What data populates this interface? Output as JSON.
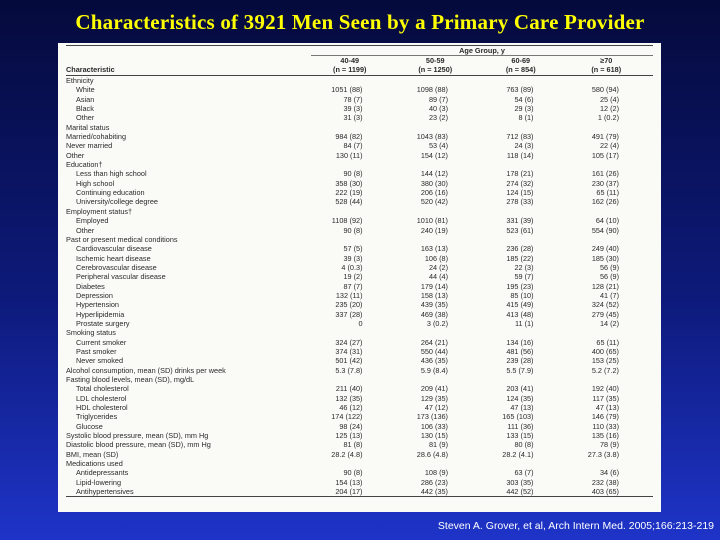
{
  "slide_title": "Characteristics of 3921 Men Seen by a Primary Care Provider",
  "table": {
    "group_header": "Age Group, y",
    "char_header": "Characteristic",
    "columns": [
      {
        "label": "40-49",
        "n": "(n = 1199)"
      },
      {
        "label": "50-59",
        "n": "(n = 1250)"
      },
      {
        "label": "60-69",
        "n": "(n = 854)"
      },
      {
        "label": "≥70",
        "n": "(n = 618)"
      }
    ],
    "rows": [
      {
        "label": "Ethnicity",
        "indent": false,
        "section": true,
        "values": [
          "",
          "",
          "",
          ""
        ]
      },
      {
        "label": "White",
        "indent": true,
        "values": [
          "1051 (88)",
          "1098 (88)",
          "763 (89)",
          "580 (94)"
        ]
      },
      {
        "label": "Asian",
        "indent": true,
        "values": [
          "78 (7)",
          "89 (7)",
          "54 (6)",
          "25 (4)"
        ]
      },
      {
        "label": "Black",
        "indent": true,
        "values": [
          "39 (3)",
          "40 (3)",
          "29 (3)",
          "12 (2)"
        ]
      },
      {
        "label": "Other",
        "indent": true,
        "values": [
          "31 (3)",
          "23 (2)",
          "8 (1)",
          "1 (0.2)"
        ]
      },
      {
        "label": "Marital status",
        "indent": false,
        "section": true,
        "values": [
          "",
          "",
          "",
          ""
        ]
      },
      {
        "label": "Married/cohabiting",
        "indent": false,
        "values": [
          "984 (82)",
          "1043 (83)",
          "712 (83)",
          "491 (79)"
        ]
      },
      {
        "label": "Never married",
        "indent": false,
        "values": [
          "84 (7)",
          "53 (4)",
          "24 (3)",
          "22 (4)"
        ]
      },
      {
        "label": "Other",
        "indent": false,
        "values": [
          "130 (11)",
          "154 (12)",
          "118 (14)",
          "105 (17)"
        ]
      },
      {
        "label": "Education†",
        "indent": false,
        "section": true,
        "values": [
          "",
          "",
          "",
          ""
        ]
      },
      {
        "label": "Less than high school",
        "indent": true,
        "values": [
          "90 (8)",
          "144 (12)",
          "178 (21)",
          "161 (26)"
        ]
      },
      {
        "label": "High school",
        "indent": true,
        "values": [
          "358 (30)",
          "380 (30)",
          "274 (32)",
          "230 (37)"
        ]
      },
      {
        "label": "Continuing education",
        "indent": true,
        "values": [
          "222 (19)",
          "206 (16)",
          "124 (15)",
          "65 (11)"
        ]
      },
      {
        "label": "University/college degree",
        "indent": true,
        "values": [
          "528 (44)",
          "520 (42)",
          "278 (33)",
          "162 (26)"
        ]
      },
      {
        "label": "Employment status†",
        "indent": false,
        "section": true,
        "values": [
          "",
          "",
          "",
          ""
        ]
      },
      {
        "label": "Employed",
        "indent": true,
        "values": [
          "1108 (92)",
          "1010 (81)",
          "331 (39)",
          "64 (10)"
        ]
      },
      {
        "label": "Other",
        "indent": true,
        "values": [
          "90 (8)",
          "240 (19)",
          "523 (61)",
          "554 (90)"
        ]
      },
      {
        "label": "Past or present medical conditions",
        "indent": false,
        "section": true,
        "values": [
          "",
          "",
          "",
          ""
        ]
      },
      {
        "label": "Cardiovascular disease",
        "indent": true,
        "values": [
          "57 (5)",
          "163 (13)",
          "236 (28)",
          "249 (40)"
        ]
      },
      {
        "label": "Ischemic heart disease",
        "indent": true,
        "values": [
          "39 (3)",
          "106 (8)",
          "185 (22)",
          "185 (30)"
        ]
      },
      {
        "label": "Cerebrovascular disease",
        "indent": true,
        "values": [
          "4 (0.3)",
          "24 (2)",
          "22 (3)",
          "56 (9)"
        ]
      },
      {
        "label": "Peripheral vascular disease",
        "indent": true,
        "values": [
          "19 (2)",
          "44 (4)",
          "59 (7)",
          "56 (9)"
        ]
      },
      {
        "label": "Diabetes",
        "indent": true,
        "values": [
          "87 (7)",
          "179 (14)",
          "195 (23)",
          "128 (21)"
        ]
      },
      {
        "label": "Depression",
        "indent": true,
        "values": [
          "132 (11)",
          "158 (13)",
          "85 (10)",
          "41 (7)"
        ]
      },
      {
        "label": "Hypertension",
        "indent": true,
        "values": [
          "235 (20)",
          "439 (35)",
          "415 (49)",
          "324 (52)"
        ]
      },
      {
        "label": "Hyperlipidemia",
        "indent": true,
        "values": [
          "337 (28)",
          "469 (38)",
          "413 (48)",
          "279 (45)"
        ]
      },
      {
        "label": "Prostate surgery",
        "indent": true,
        "values": [
          "0",
          "3 (0.2)",
          "11 (1)",
          "14 (2)"
        ]
      },
      {
        "label": "Smoking status",
        "indent": false,
        "section": true,
        "values": [
          "",
          "",
          "",
          ""
        ]
      },
      {
        "label": "Current smoker",
        "indent": true,
        "values": [
          "324 (27)",
          "264 (21)",
          "134 (16)",
          "65 (11)"
        ]
      },
      {
        "label": "Past smoker",
        "indent": true,
        "values": [
          "374 (31)",
          "550 (44)",
          "481 (56)",
          "400 (65)"
        ]
      },
      {
        "label": "Never smoked",
        "indent": true,
        "values": [
          "501 (42)",
          "436 (35)",
          "239 (28)",
          "153 (25)"
        ]
      },
      {
        "label": "Alcohol consumption, mean (SD) drinks per week",
        "indent": false,
        "values": [
          "5.3 (7.8)",
          "5.9 (8.4)",
          "5.5 (7.9)",
          "5.2 (7.2)"
        ]
      },
      {
        "label": "Fasting blood levels, mean (SD), mg/dL",
        "indent": false,
        "section": true,
        "values": [
          "",
          "",
          "",
          ""
        ]
      },
      {
        "label": "Total cholesterol",
        "indent": true,
        "values": [
          "211 (40)",
          "209 (41)",
          "203 (41)",
          "192 (40)"
        ]
      },
      {
        "label": "LDL cholesterol",
        "indent": true,
        "values": [
          "132 (35)",
          "129 (35)",
          "124 (35)",
          "117 (35)"
        ]
      },
      {
        "label": "HDL cholesterol",
        "indent": true,
        "values": [
          "46 (12)",
          "47 (12)",
          "47 (13)",
          "47 (13)"
        ]
      },
      {
        "label": "Triglycerides",
        "indent": true,
        "values": [
          "174 (122)",
          "173 (136)",
          "165 (103)",
          "146 (79)"
        ]
      },
      {
        "label": "Glucose",
        "indent": true,
        "values": [
          "98 (24)",
          "106 (33)",
          "111 (36)",
          "110 (33)"
        ]
      },
      {
        "label": "Systolic blood pressure, mean (SD), mm Hg",
        "indent": false,
        "values": [
          "125 (13)",
          "130 (15)",
          "133 (15)",
          "135 (16)"
        ]
      },
      {
        "label": "Diastolic blood pressure, mean (SD), mm Hg",
        "indent": false,
        "values": [
          "81 (8)",
          "81 (9)",
          "80 (8)",
          "78 (9)"
        ]
      },
      {
        "label": "BMI, mean (SD)",
        "indent": false,
        "values": [
          "28.2 (4.8)",
          "28.6 (4.8)",
          "28.2 (4.1)",
          "27.3 (3.8)"
        ]
      },
      {
        "label": "Medications used",
        "indent": false,
        "section": true,
        "values": [
          "",
          "",
          "",
          ""
        ]
      },
      {
        "label": "Antidepressants",
        "indent": true,
        "values": [
          "90 (8)",
          "108 (9)",
          "63 (7)",
          "34 (6)"
        ]
      },
      {
        "label": "Lipid-lowering",
        "indent": true,
        "values": [
          "154 (13)",
          "286 (23)",
          "303 (35)",
          "232 (38)"
        ]
      },
      {
        "label": "Antihypertensives",
        "indent": true,
        "values": [
          "204 (17)",
          "442 (35)",
          "442 (52)",
          "403 (65)"
        ]
      }
    ]
  },
  "citation": "Steven A. Grover, et al, Arch Intern Med. 2005;166:213-219",
  "colors": {
    "title": "#ffff00",
    "background_top": "#050a3c",
    "background_bottom": "#1e34c8",
    "panel": "#fafaf7",
    "citation": "#ffffff"
  }
}
